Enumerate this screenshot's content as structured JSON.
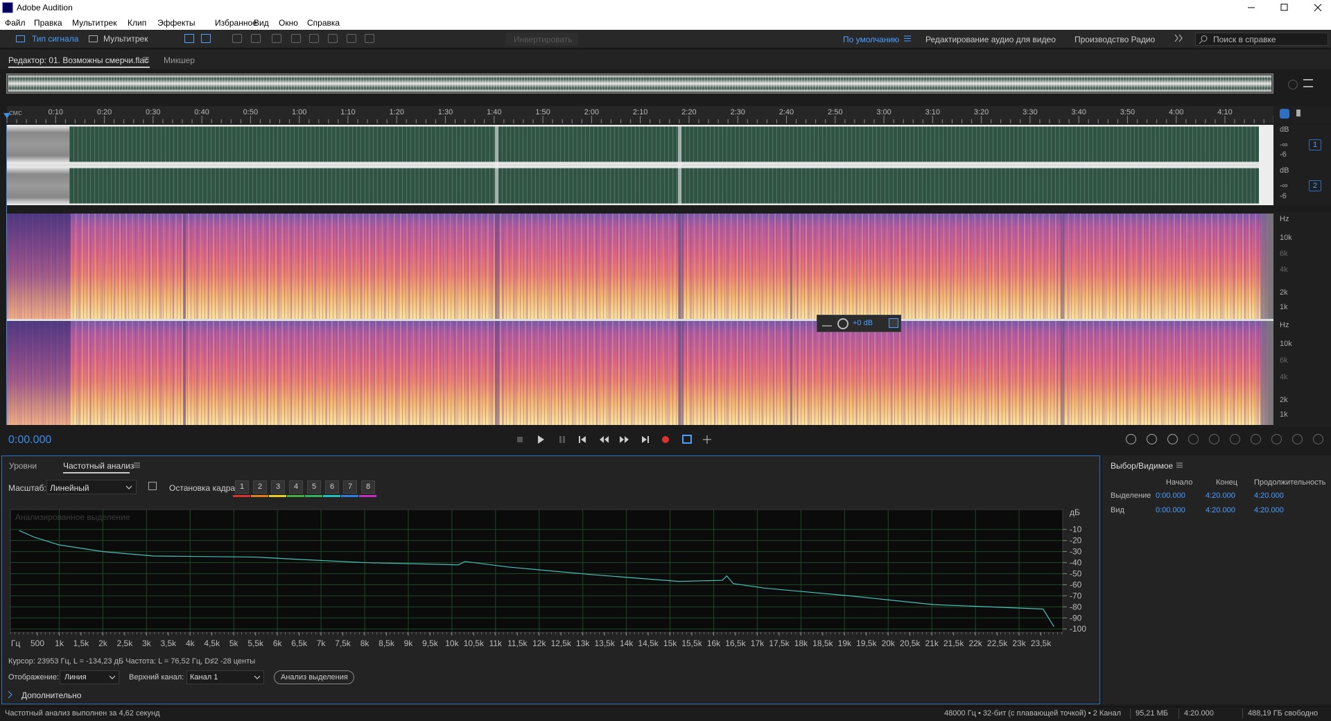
{
  "app_title": "Adobe Audition",
  "menu": [
    "Файл",
    "Правка",
    "Мультитрек",
    "Клип",
    "Эффекты",
    "Избранное",
    "Вид",
    "Окно",
    "Справка"
  ],
  "toolbar": {
    "waveform": "Тип сигнала",
    "multitrack": "Мультитрек",
    "invert": "Инвертировать",
    "workspaces": [
      "По умолчанию",
      "Редактирование аудио для видео",
      "Производство Радио"
    ],
    "search": "Поиск в справке"
  },
  "editor": {
    "tabs": [
      "Редактор: 01. Возможны смерчи.flac",
      "Микшер"
    ],
    "ruler": {
      "unit": "смс",
      "labels": [
        "0:10",
        "0:20",
        "0:30",
        "0:40",
        "0:50",
        "1:00",
        "1:10",
        "1:20",
        "1:30",
        "1:40",
        "1:50",
        "2:00",
        "2:10",
        "2:20",
        "2:30",
        "2:40",
        "2:50",
        "3:00",
        "3:10",
        "3:20",
        "3:30",
        "3:40",
        "3:50",
        "4:00",
        "4:10"
      ]
    },
    "wave_scale": [
      "dB",
      "-∞",
      "-6"
    ],
    "channels": [
      "1",
      "2"
    ],
    "spectral_scale": [
      "Hz",
      "10k",
      "6k",
      "4k",
      "2k",
      "1k"
    ],
    "hud": "+0 dB",
    "time": "0:00.000"
  },
  "analysis": {
    "tabs": [
      "Уровни",
      "Частотный анализ"
    ],
    "scale_label": "Масштаб:",
    "scale_value": "Линейный",
    "freeze_label": "Остановка кадра:",
    "freeze_buttons": [
      "1",
      "2",
      "3",
      "4",
      "5",
      "6",
      "7",
      "8"
    ],
    "overlay": "Анализированное выделение",
    "chart": {
      "type": "line",
      "x_unit": "Гц",
      "y_unit": "дБ",
      "color": "#4cc0b8",
      "grid": true,
      "x": [
        80,
        430,
        1000,
        2000,
        3150,
        5500,
        6450,
        8000,
        10150,
        10300,
        11300,
        13250,
        15200,
        16200,
        16300,
        16450,
        17150,
        19100,
        21050,
        23550,
        23800
      ],
      "values": [
        -11,
        -17,
        -24,
        -30,
        -34,
        -35,
        -37,
        -40,
        -42,
        -39,
        -44,
        -51,
        -57,
        -56,
        -52,
        -59,
        -63,
        -70,
        -78,
        -82,
        -98
      ],
      "xlim": [
        -120,
        24000
      ],
      "ylim": [
        -103,
        8
      ],
      "xticks": [
        500,
        {
          "value": 1000,
          "label": "1k"
        },
        {
          "value": 1500,
          "label": "1,5k"
        },
        {
          "value": 2000,
          "label": "2k"
        },
        {
          "value": 2500,
          "label": "2,5k"
        },
        {
          "value": 3000,
          "label": "3k"
        },
        {
          "value": 3500,
          "label": "3,5k"
        },
        {
          "value": 4000,
          "label": "4k"
        },
        {
          "value": 4500,
          "label": "4,5k"
        },
        {
          "value": 5000,
          "label": "5k"
        },
        {
          "value": 5500,
          "label": "5,5k"
        },
        {
          "value": 6000,
          "label": "6k"
        },
        {
          "value": 6500,
          "label": "6,5k"
        },
        {
          "value": 7000,
          "label": "7k"
        },
        {
          "value": 7500,
          "label": "7,5k"
        },
        {
          "value": 8000,
          "label": "8k"
        },
        {
          "value": 8500,
          "label": "8,5k"
        },
        {
          "value": 9000,
          "label": "9k"
        },
        {
          "value": 9500,
          "label": "9,5k"
        },
        {
          "value": 10000,
          "label": "10k"
        },
        {
          "value": 10500,
          "label": "10,5k"
        },
        {
          "value": 11000,
          "label": "11k"
        },
        {
          "value": 11500,
          "label": "11,5k"
        },
        {
          "value": 12000,
          "label": "12k"
        },
        {
          "value": 12500,
          "label": "12,5k"
        },
        {
          "value": 13000,
          "label": "13k"
        },
        {
          "value": 13500,
          "label": "13,5k"
        },
        {
          "value": 14000,
          "label": "14k"
        },
        {
          "value": 14500,
          "label": "14,5k"
        },
        {
          "value": 15000,
          "label": "15k"
        },
        {
          "value": 15500,
          "label": "15,5k"
        },
        {
          "value": 16000,
          "label": "16k"
        },
        {
          "value": 16500,
          "label": "16,5k"
        },
        {
          "value": 17000,
          "label": "17k"
        },
        {
          "value": 17500,
          "label": "17,5k"
        },
        {
          "value": 18000,
          "label": "18k"
        },
        {
          "value": 18500,
          "label": "18,5k"
        },
        {
          "value": 19000,
          "label": "19k"
        },
        {
          "value": 19500,
          "label": "19,5k"
        },
        {
          "value": 20000,
          "label": "20k"
        },
        {
          "value": 20500,
          "label": "20,5k"
        },
        {
          "value": 21000,
          "label": "21k"
        },
        {
          "value": 21500,
          "label": "21,5k"
        },
        {
          "value": 22000,
          "label": "22k"
        },
        {
          "value": 22500,
          "label": "22,5k"
        },
        {
          "value": 23000,
          "label": "23k"
        },
        {
          "value": 23500,
          "label": "23,5k"
        }
      ],
      "yticks": [
        -10,
        -20,
        -30,
        -40,
        -50,
        -60,
        -70,
        -80,
        -90,
        -100
      ]
    },
    "cursor": "Курсор: 23953 Гц, L = -134,23 дБ Частота: L = 76,52 Гц, D♯2 -28 центы",
    "display_label": "Отображение:",
    "display_value": "Линия",
    "channel_label": "Верхний канал:",
    "channel_value": "Канал 1",
    "button": "Анализ выделения",
    "more": "Дополнительно"
  },
  "selection": {
    "title": "Выбор/Видимое",
    "columns": [
      "Начало",
      "Конец",
      "Продолжительность"
    ],
    "rows": [
      [
        "Выделение",
        "0:00.000",
        "4:20.000",
        "4:20.000"
      ],
      [
        "Вид",
        "0:00.000",
        "4:20.000",
        "4:20.000"
      ]
    ]
  },
  "status": {
    "message": "Частотный анализ выполнен за 4,62 секунд",
    "items": [
      "48000 Гц • 32-бит (с плавающей точкой) • 2 Канал",
      "95,21 МБ",
      "4:20.000",
      "488,19 ГБ свободно"
    ]
  }
}
